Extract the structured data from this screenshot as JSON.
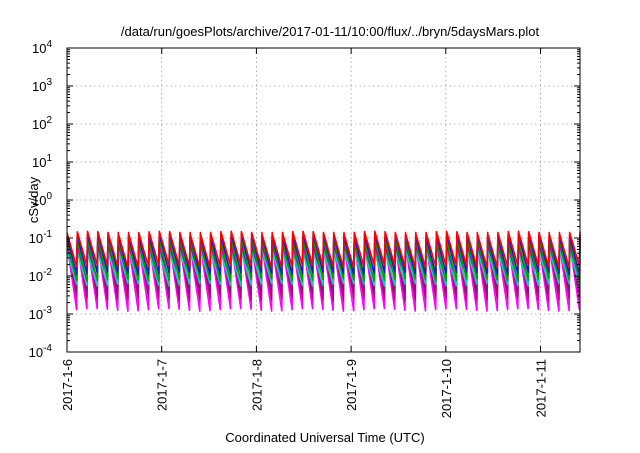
{
  "chart_data": {
    "type": "line",
    "title": "/data/run/goesPlots/archive/2017-01-11/10:00/flux/../bryn/5daysMars.plot",
    "xlabel": "Coordinated Universal Time (UTC)",
    "ylabel": "cSv/day",
    "y_scale": "log",
    "ylim": [
      0.0001,
      10000
    ],
    "y_ticks": [
      {
        "value": 0.0001,
        "base": "10",
        "exp": "-4"
      },
      {
        "value": 0.001,
        "base": "10",
        "exp": "-3"
      },
      {
        "value": 0.01,
        "base": "10",
        "exp": "-2"
      },
      {
        "value": 0.1,
        "base": "10",
        "exp": "-1"
      },
      {
        "value": 1,
        "base": "10",
        "exp": "0"
      },
      {
        "value": 10,
        "base": "10",
        "exp": "1"
      },
      {
        "value": 100,
        "base": "10",
        "exp": "2"
      },
      {
        "value": 1000,
        "base": "10",
        "exp": "3"
      },
      {
        "value": 10000,
        "base": "10",
        "exp": "4"
      }
    ],
    "xlim": [
      "2017-01-06 00:00",
      "2017-01-11 10:00"
    ],
    "x_ticks": [
      {
        "value": "2017-01-06",
        "label": "2017-1-6"
      },
      {
        "value": "2017-01-07",
        "label": "2017-1-7"
      },
      {
        "value": "2017-01-08",
        "label": "2017-1-8"
      },
      {
        "value": "2017-01-09",
        "label": "2017-1-9"
      },
      {
        "value": "2017-01-10",
        "label": "2017-1-10"
      },
      {
        "value": "2017-01-11",
        "label": "2017-1-11"
      }
    ],
    "grid": true,
    "sawtooth_period_hours": 2.6,
    "series": [
      {
        "color": "#ff00ff",
        "peak": 0.07,
        "trough": 0.0013
      },
      {
        "color": "#c0007a",
        "peak": 0.09,
        "trough": 0.0025
      },
      {
        "color": "#7a1e7a",
        "peak": 0.1,
        "trough": 0.004
      },
      {
        "color": "#18c8c8",
        "peak": 0.045,
        "trough": 0.006
      },
      {
        "color": "#00a000",
        "peak": 0.09,
        "trough": 0.008
      },
      {
        "color": "#1a1acc",
        "peak": 0.12,
        "trough": 0.012
      },
      {
        "color": "#ff0000",
        "peak": 0.14,
        "trough": 0.018
      }
    ]
  }
}
